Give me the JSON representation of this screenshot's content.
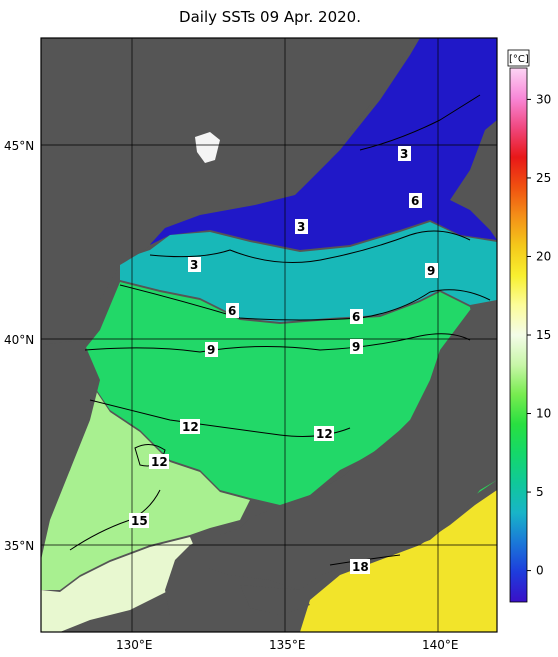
{
  "title": "Daily SSTs 09 Apr. 2020.",
  "colorbar": {
    "unit": "[°C]",
    "ticks": [
      "30",
      "25",
      "20",
      "15",
      "10",
      "5",
      "0"
    ],
    "range": [
      -2,
      32
    ],
    "colors": [
      "#3a10c8",
      "#1e3cdc",
      "#1a78d8",
      "#18b4c8",
      "#10c89a",
      "#14d86a",
      "#28e040",
      "#78ec50",
      "#c8f6a8",
      "#f4fce8",
      "#fcfc9a",
      "#f8f030",
      "#f4c81a",
      "#f49018",
      "#f05010",
      "#e81818",
      "#f04880",
      "#f888d8",
      "#fcd4f4"
    ]
  },
  "axes": {
    "lat_labels": [
      "45°N",
      "40°N",
      "35°N"
    ],
    "lon_labels": [
      "130°E",
      "135°E",
      "140°E"
    ]
  },
  "contour_labels": [
    "3",
    "6",
    "3",
    "3",
    "9",
    "6",
    "6",
    "9",
    "9",
    "12",
    "12",
    "12",
    "15",
    "18"
  ],
  "colors": {
    "land": "#555555",
    "frame": "#000000",
    "grid": "#000000"
  }
}
